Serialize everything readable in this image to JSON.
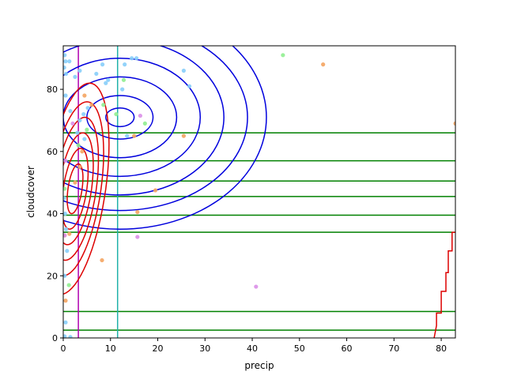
{
  "chart_data": {
    "type": "scatter",
    "title": "",
    "xlabel": "precip",
    "ylabel": "cloudcover",
    "xlim": [
      0,
      83
    ],
    "ylim": [
      0,
      94
    ],
    "xticks": [
      0,
      10,
      20,
      30,
      40,
      50,
      60,
      70,
      80
    ],
    "yticks": [
      0,
      20,
      40,
      60,
      80
    ],
    "grid": false,
    "legend": "none",
    "colors": {
      "sky": "#87cefa",
      "green": "#90ee90",
      "orange": "#f4a460",
      "violet": "#da8fe8",
      "ellipse": "#0000dd",
      "contour": "#dd0000",
      "hline": "#008000",
      "vline_cyan": "#20b2aa",
      "vline_magenta": "#b000b0"
    },
    "ellipse_contours": {
      "center": [
        12,
        71
      ],
      "x_radii": [
        3,
        7,
        12,
        17,
        22,
        27,
        31
      ],
      "y_radii": [
        3,
        7,
        13,
        19,
        25,
        30,
        36
      ]
    },
    "red_contours": {
      "center": [
        2.5,
        48
      ],
      "levels": [
        {
          "x_radius": 1.5,
          "y_radius": 8,
          "tilt": 0.09
        },
        {
          "x_radius": 2.5,
          "y_radius": 13,
          "tilt": 0.09
        },
        {
          "x_radius": 3.5,
          "y_radius": 18,
          "tilt": 0.09
        },
        {
          "x_radius": 4.5,
          "y_radius": 23,
          "tilt": 0.09
        },
        {
          "x_radius": 5.5,
          "y_radius": 28,
          "tilt": 0.09
        },
        {
          "x_radius": 6.5,
          "y_radius": 34,
          "tilt": 0.09
        }
      ],
      "step_line": [
        [
          78.5,
          0
        ],
        [
          79,
          4
        ],
        [
          79,
          8
        ],
        [
          80,
          8
        ],
        [
          80,
          15
        ],
        [
          81,
          15
        ],
        [
          81,
          21
        ],
        [
          81.5,
          21
        ],
        [
          81.5,
          28
        ],
        [
          82.3,
          28
        ],
        [
          82.3,
          34
        ],
        [
          83,
          34
        ]
      ]
    },
    "horizontal_lines": [
      2.5,
      8.5,
      34,
      39.5,
      45.5,
      50.5,
      57,
      66
    ],
    "vertical_lines": [
      {
        "x": 3.2,
        "color": "vline_magenta"
      },
      {
        "x": 11.5,
        "color": "vline_cyan"
      }
    ],
    "series": [
      {
        "color": "sky",
        "points": [
          [
            0.3,
            91
          ],
          [
            0.5,
            89
          ],
          [
            1.3,
            89
          ],
          [
            0.2,
            87
          ],
          [
            0.6,
            85
          ],
          [
            2.5,
            84
          ],
          [
            3.5,
            86
          ],
          [
            7,
            85
          ],
          [
            8.3,
            88
          ],
          [
            9.5,
            83
          ],
          [
            9,
            82
          ],
          [
            13,
            88
          ],
          [
            14.5,
            90
          ],
          [
            15.5,
            90
          ],
          [
            25.5,
            86
          ],
          [
            26.7,
            81
          ],
          [
            12.5,
            80
          ],
          [
            0.5,
            78
          ],
          [
            1.5,
            73
          ],
          [
            3.5,
            70
          ],
          [
            3,
            66
          ],
          [
            4.5,
            64
          ],
          [
            13.5,
            65
          ],
          [
            0.2,
            45
          ],
          [
            0.4,
            40
          ],
          [
            0.6,
            35
          ],
          [
            0.8,
            28
          ],
          [
            0.3,
            20
          ],
          [
            0.5,
            5
          ],
          [
            0.3,
            0.5
          ],
          [
            1.5,
            0.3
          ],
          [
            5.2,
            74
          ],
          [
            4.3,
            72
          ]
        ]
      },
      {
        "color": "green",
        "points": [
          [
            46.5,
            91
          ],
          [
            12.8,
            83
          ],
          [
            11.2,
            72
          ],
          [
            17.3,
            69
          ],
          [
            8.5,
            75
          ],
          [
            5,
            67
          ],
          [
            3.2,
            62
          ],
          [
            0.3,
            48
          ],
          [
            1.2,
            17
          ]
        ]
      },
      {
        "color": "orange",
        "points": [
          [
            55,
            88
          ],
          [
            15,
            65
          ],
          [
            25.5,
            65
          ],
          [
            19.5,
            47.5
          ],
          [
            15.7,
            40.5
          ],
          [
            8.2,
            25
          ],
          [
            4.5,
            78
          ],
          [
            6,
            75
          ],
          [
            0.3,
            33
          ],
          [
            1.3,
            33.5
          ],
          [
            0.5,
            12
          ],
          [
            83,
            69
          ],
          [
            4,
            60
          ],
          [
            3.5,
            55
          ],
          [
            2.5,
            50
          ]
        ]
      },
      {
        "color": "violet",
        "points": [
          [
            16.3,
            71.5
          ],
          [
            15.7,
            32.5
          ],
          [
            40.8,
            16.5
          ],
          [
            2,
            69
          ],
          [
            0.5,
            57
          ],
          [
            0.3,
            33
          ]
        ]
      }
    ]
  }
}
